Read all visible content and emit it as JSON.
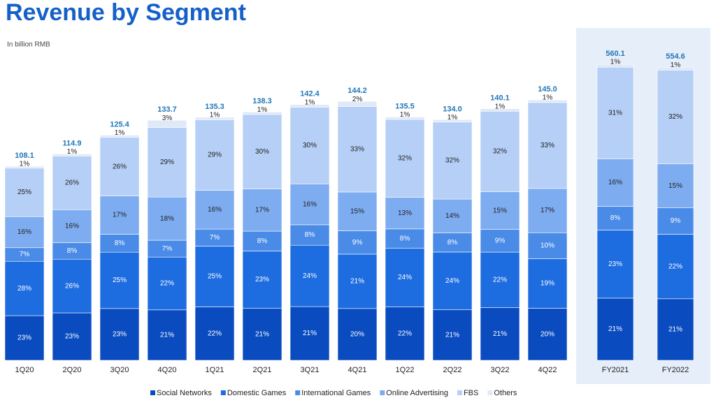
{
  "chart_data": [
    {
      "type": "stacked-bar",
      "title": "Revenue by Segment",
      "subtitle": "In billion RMB",
      "categories": [
        "1Q20",
        "2Q20",
        "3Q20",
        "4Q20",
        "1Q21",
        "2Q21",
        "3Q21",
        "4Q21",
        "1Q22",
        "2Q22",
        "3Q22",
        "4Q22"
      ],
      "totals": {
        "values": [
          108.1,
          114.9,
          125.4,
          133.7,
          135.3,
          138.3,
          142.4,
          144.2,
          135.5,
          134,
          140.1,
          145
        ],
        "value_labels": [
          "108.1",
          "114.9",
          "125.4",
          "133.7",
          "135.3",
          "138.3",
          "142.4",
          "144.2",
          "135.5",
          "134.0",
          "140.1",
          "145.0"
        ]
      },
      "series": [
        {
          "name": "Social Networks",
          "color": "#0a4cc0",
          "values": [
            23,
            23,
            23,
            21,
            22,
            21,
            21,
            20,
            22,
            21,
            21,
            20
          ],
          "value_labels": [
            "23%",
            "23%",
            "23%",
            "21%",
            "22%",
            "21%",
            "21%",
            "20%",
            "22%",
            "21%",
            "21%",
            "20%"
          ]
        },
        {
          "name": "Domestic Games",
          "color": "#1e6de0",
          "values": [
            28,
            26,
            25,
            22,
            25,
            23,
            24,
            21,
            24,
            24,
            22,
            19
          ],
          "value_labels": [
            "28%",
            "26%",
            "25%",
            "22%",
            "25%",
            "23%",
            "24%",
            "21%",
            "24%",
            "24%",
            "22%",
            "19%"
          ]
        },
        {
          "name": "International Games",
          "color": "#4a8be8",
          "values": [
            7,
            8,
            8,
            7,
            7,
            8,
            8,
            9,
            8,
            8,
            9,
            10
          ],
          "value_labels": [
            "7%",
            "8%",
            "8%",
            "7%",
            "7%",
            "8%",
            "8%",
            "9%",
            "8%",
            "8%",
            "9%",
            "10%"
          ]
        },
        {
          "name": "Online Advertising",
          "color": "#7eacf0",
          "values": [
            16,
            16,
            17,
            18,
            16,
            17,
            16,
            15,
            13,
            14,
            15,
            17
          ],
          "value_labels": [
            "16%",
            "16%",
            "17%",
            "18%",
            "16%",
            "17%",
            "16%",
            "15%",
            "13%",
            "14%",
            "15%",
            "17%"
          ]
        },
        {
          "name": "FBS",
          "color": "#b5cff6",
          "values": [
            25,
            26,
            26,
            29,
            29,
            30,
            30,
            33,
            32,
            32,
            32,
            33
          ],
          "value_labels": [
            "25%",
            "26%",
            "26%",
            "29%",
            "29%",
            "30%",
            "30%",
            "33%",
            "32%",
            "32%",
            "32%",
            "33%"
          ]
        },
        {
          "name": "Others",
          "color": "#e0e9f8",
          "values": [
            1,
            1,
            1,
            3,
            1,
            1,
            1,
            2,
            1,
            1,
            1,
            1
          ],
          "value_labels": [
            "1%",
            "1%",
            "1%",
            "3%",
            "1%",
            "1%",
            "1%",
            "2%",
            "1%",
            "1%",
            "1%",
            "1%"
          ]
        }
      ]
    },
    {
      "type": "stacked-bar",
      "categories": [
        "FY2021",
        "FY2022"
      ],
      "totals": {
        "values": [
          560.1,
          554.6
        ],
        "value_labels": [
          "560.1",
          "554.6"
        ]
      },
      "series": [
        {
          "name": "Social Networks",
          "color": "#0a4cc0",
          "values": [
            21,
            21
          ],
          "value_labels": [
            "21%",
            "21%"
          ]
        },
        {
          "name": "Domestic Games",
          "color": "#1e6de0",
          "values": [
            23,
            22
          ],
          "value_labels": [
            "23%",
            "22%"
          ]
        },
        {
          "name": "International Games",
          "color": "#4a8be8",
          "values": [
            8,
            9
          ],
          "value_labels": [
            "8%",
            "9%"
          ]
        },
        {
          "name": "Online Advertising",
          "color": "#7eacf0",
          "values": [
            16,
            15
          ],
          "value_labels": [
            "16%",
            "15%"
          ]
        },
        {
          "name": "FBS",
          "color": "#b5cff6",
          "values": [
            31,
            32
          ],
          "value_labels": [
            "31%",
            "32%"
          ]
        },
        {
          "name": "Others",
          "color": "#e0e9f8",
          "values": [
            1,
            1
          ],
          "value_labels": [
            "1%",
            "1%"
          ]
        }
      ]
    }
  ]
}
